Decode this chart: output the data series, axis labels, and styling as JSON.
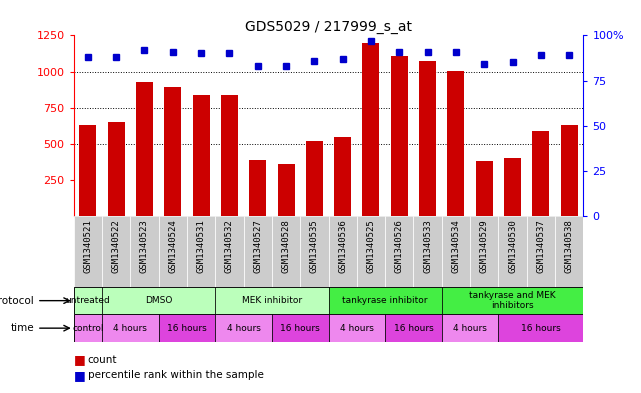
{
  "title": "GDS5029 / 217999_s_at",
  "samples": [
    "GSM1340521",
    "GSM1340522",
    "GSM1340523",
    "GSM1340524",
    "GSM1340531",
    "GSM1340532",
    "GSM1340527",
    "GSM1340528",
    "GSM1340535",
    "GSM1340536",
    "GSM1340525",
    "GSM1340526",
    "GSM1340533",
    "GSM1340534",
    "GSM1340529",
    "GSM1340530",
    "GSM1340537",
    "GSM1340538"
  ],
  "counts": [
    630,
    650,
    930,
    890,
    840,
    840,
    390,
    360,
    520,
    545,
    1200,
    1110,
    1070,
    1005,
    380,
    400,
    590,
    630
  ],
  "percentile_ranks": [
    88,
    88,
    92,
    91,
    90,
    90,
    83,
    83,
    86,
    87,
    97,
    91,
    91,
    91,
    84,
    85,
    89,
    89
  ],
  "bar_color": "#cc0000",
  "dot_color": "#0000cc",
  "ylim_left": [
    0,
    1250
  ],
  "ylim_right": [
    0,
    100
  ],
  "yticks_left": [
    250,
    500,
    750,
    1000,
    1250
  ],
  "yticks_right": [
    0,
    25,
    50,
    75,
    100
  ],
  "grid_values": [
    500,
    750,
    1000
  ],
  "protocol_groups": [
    {
      "label": "untreated",
      "start": 0,
      "end": 1,
      "color": "#bbffbb"
    },
    {
      "label": "DMSO",
      "start": 1,
      "end": 5,
      "color": "#bbffbb"
    },
    {
      "label": "MEK inhibitor",
      "start": 5,
      "end": 9,
      "color": "#bbffbb"
    },
    {
      "label": "tankyrase inhibitor",
      "start": 9,
      "end": 13,
      "color": "#44ee44"
    },
    {
      "label": "tankyrase and MEK\ninhibitors",
      "start": 13,
      "end": 18,
      "color": "#44ee44"
    }
  ],
  "time_groups": [
    {
      "label": "control",
      "start": 0,
      "end": 1,
      "color": "#ee88ee"
    },
    {
      "label": "4 hours",
      "start": 1,
      "end": 3,
      "color": "#ee88ee"
    },
    {
      "label": "16 hours",
      "start": 3,
      "end": 5,
      "color": "#dd44dd"
    },
    {
      "label": "4 hours",
      "start": 5,
      "end": 7,
      "color": "#ee88ee"
    },
    {
      "label": "16 hours",
      "start": 7,
      "end": 9,
      "color": "#dd44dd"
    },
    {
      "label": "4 hours",
      "start": 9,
      "end": 11,
      "color": "#ee88ee"
    },
    {
      "label": "16 hours",
      "start": 11,
      "end": 13,
      "color": "#dd44dd"
    },
    {
      "label": "4 hours",
      "start": 13,
      "end": 15,
      "color": "#ee88ee"
    },
    {
      "label": "16 hours",
      "start": 15,
      "end": 18,
      "color": "#dd44dd"
    }
  ],
  "tick_bg_color": "#cccccc",
  "axis_bg_color": "#ffffff",
  "fig_width": 6.41,
  "fig_height": 3.93,
  "dpi": 100
}
